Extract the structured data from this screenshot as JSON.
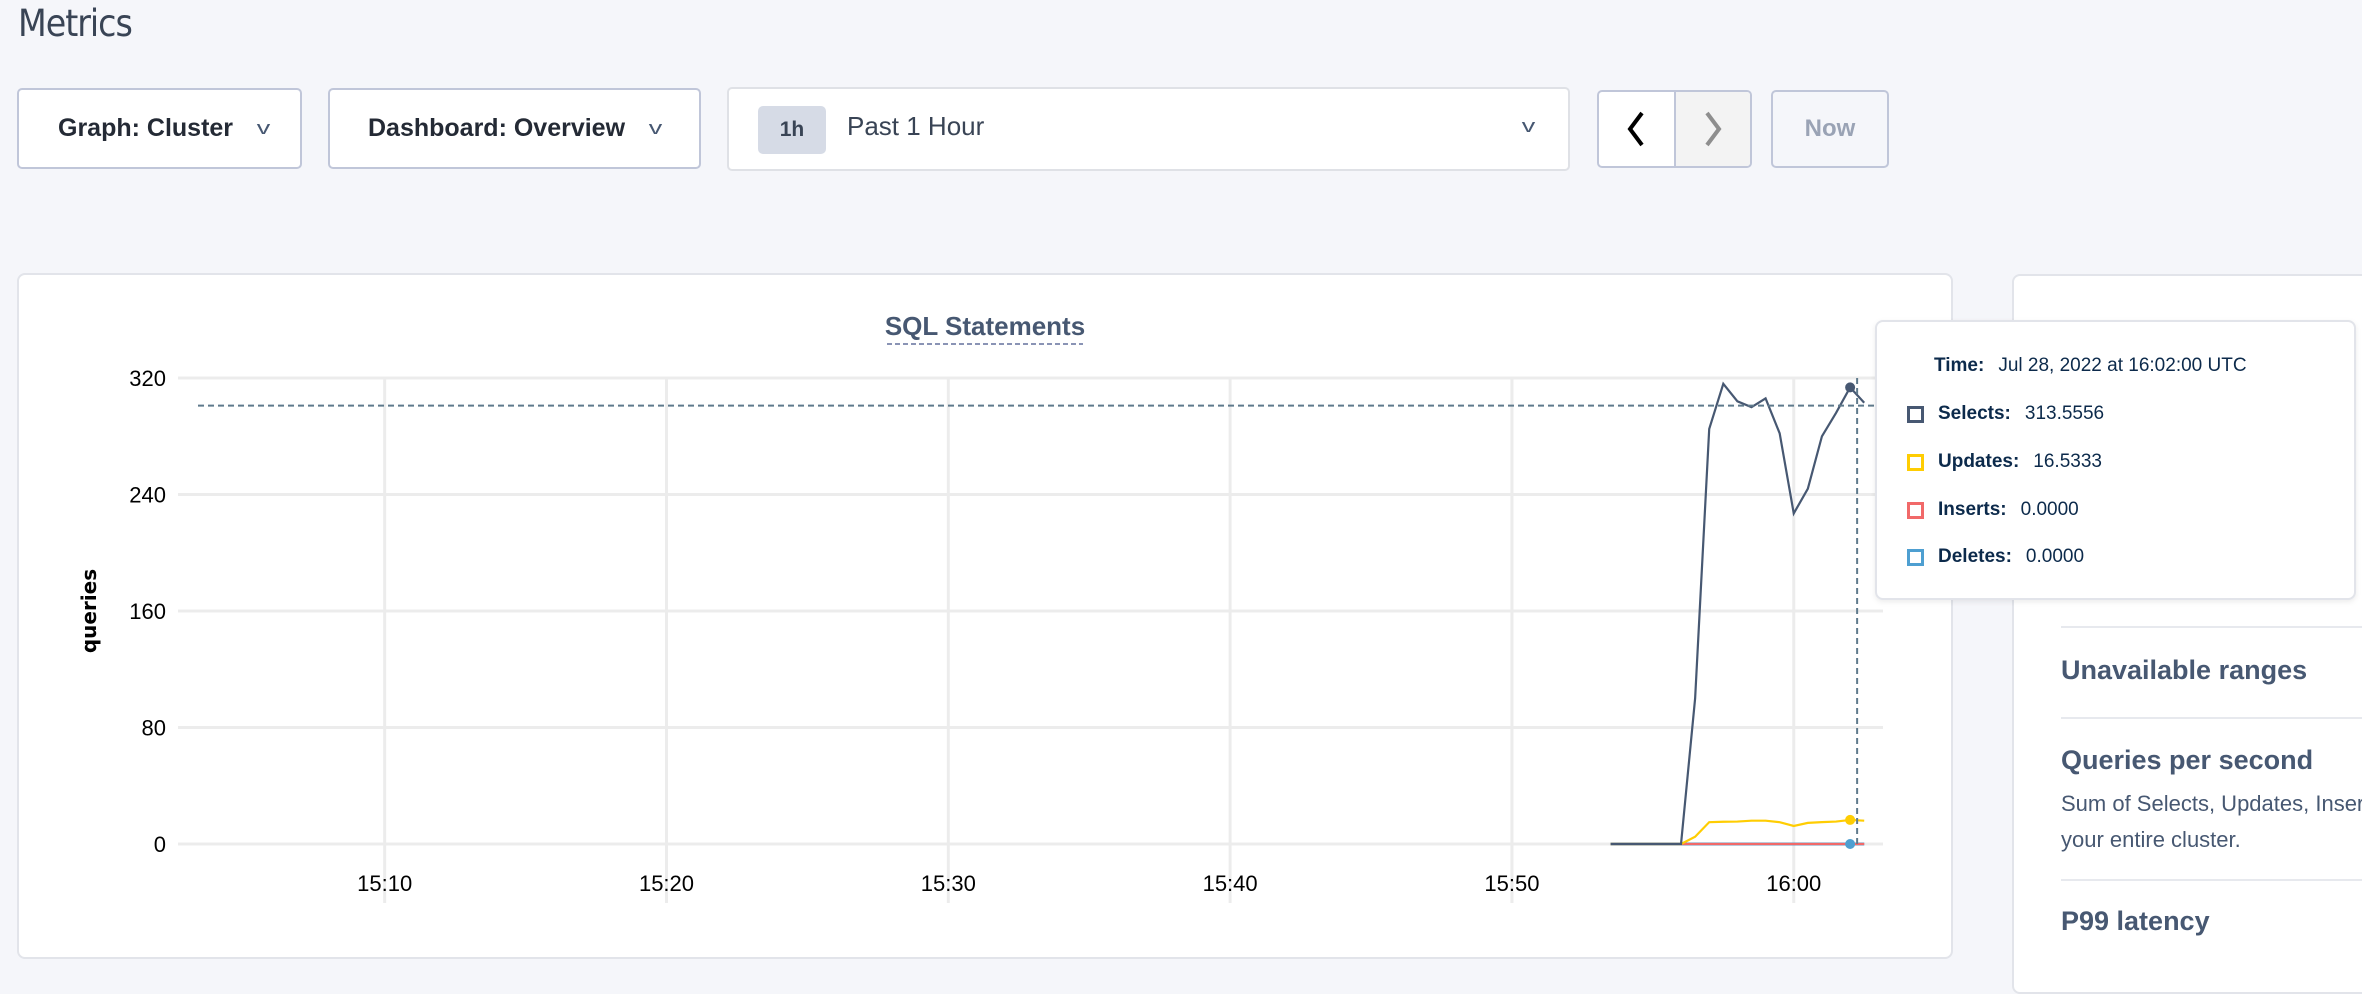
{
  "page": {
    "title": "Metrics"
  },
  "toolbar": {
    "graph_label": "Graph: Cluster",
    "dashboard_label": "Dashboard: Overview",
    "time_badge": "1h",
    "time_label": "Past 1 Hour",
    "prev_icon": "chevron-left-icon",
    "next_icon": "chevron-right-icon",
    "now_label": "Now"
  },
  "chart_data": {
    "type": "line",
    "title": "SQL Statements",
    "ylabel": "queries",
    "xlabel": "",
    "ylim": [
      0,
      320
    ],
    "xlim": [
      "15:02:40",
      "16:03:10"
    ],
    "yticks": [
      "0",
      "80",
      "160",
      "240",
      "320"
    ],
    "xticks": [
      "15:10",
      "15:20",
      "15:30",
      "15:40",
      "15:50",
      "16:00"
    ],
    "grid": true,
    "x": [
      "15:53:30",
      "15:54:00",
      "15:54:30",
      "15:55:00",
      "15:55:30",
      "15:56:00",
      "15:56:30",
      "15:57:00",
      "15:57:30",
      "15:58:00",
      "15:58:30",
      "15:59:00",
      "15:59:30",
      "16:00:00",
      "16:00:30",
      "16:01:00",
      "16:01:30",
      "16:02:00",
      "16:02:30"
    ],
    "series": [
      {
        "name": "Selects",
        "color": "#475872",
        "values": [
          0,
          0,
          0,
          0,
          0,
          0,
          100,
          285,
          316,
          304,
          300,
          306,
          282,
          227,
          244,
          280,
          296,
          313.5556,
          303
        ]
      },
      {
        "name": "Updates",
        "color": "#ffcd02",
        "values": [
          0,
          0,
          0,
          0,
          0,
          0,
          5,
          15,
          15.3,
          15.4,
          16,
          16,
          15,
          12.4,
          14.5,
          15,
          15.4,
          16.5333,
          16
        ]
      },
      {
        "name": "Inserts",
        "color": "#f16969",
        "values": [
          0,
          0,
          0,
          0,
          0,
          0,
          0,
          0,
          0,
          0,
          0,
          0,
          0,
          0,
          0,
          0,
          0,
          0,
          0
        ]
      },
      {
        "name": "Deletes",
        "color": "#4e9fd1",
        "values": [
          0,
          0,
          0,
          0,
          0,
          0,
          0,
          0,
          0,
          0,
          0,
          0,
          0,
          0,
          0,
          0,
          0,
          0,
          0
        ]
      }
    ],
    "hover_time": "16:02:00"
  },
  "tooltip": {
    "time_label": "Time:",
    "time_value": "Jul 28, 2022 at 16:02:00 UTC",
    "rows": [
      {
        "label": "Selects:",
        "value": "313.5556",
        "color": "#475872"
      },
      {
        "label": "Updates:",
        "value": "16.5333",
        "color": "#ffcd02"
      },
      {
        "label": "Inserts:",
        "value": "0.0000",
        "color": "#f16969"
      },
      {
        "label": "Deletes:",
        "value": "0.0000",
        "color": "#4e9fd1"
      }
    ]
  },
  "side_panel": {
    "items": [
      {
        "title": "Unavailable ranges"
      },
      {
        "title": "Queries per second",
        "desc_line1": "Sum of Selects, Updates, Inser",
        "desc_line2": "your entire cluster."
      },
      {
        "title": "P99 latency"
      }
    ]
  }
}
